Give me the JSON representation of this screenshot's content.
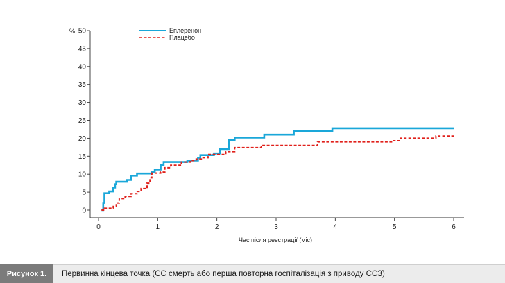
{
  "chart_data": {
    "type": "line",
    "ylabel": "%",
    "xlabel": "Час після реєстрації (міс)",
    "xlim": [
      0,
      6
    ],
    "ylim": [
      0,
      50
    ],
    "x_ticks": [
      0,
      1,
      2,
      3,
      4,
      5,
      6
    ],
    "y_ticks": [
      0,
      5,
      10,
      15,
      20,
      25,
      30,
      35,
      40,
      45,
      50
    ],
    "grid": false,
    "legend_position": "top-center",
    "series": [
      {
        "name": "Еплеренон",
        "color": "#1aa7d9",
        "style": "solid step",
        "points": [
          [
            0.05,
            0
          ],
          [
            0.08,
            2
          ],
          [
            0.1,
            4.7
          ],
          [
            0.18,
            5.2
          ],
          [
            0.25,
            6.3
          ],
          [
            0.28,
            7.2
          ],
          [
            0.3,
            7.9
          ],
          [
            0.48,
            8.4
          ],
          [
            0.55,
            9.6
          ],
          [
            0.65,
            10.2
          ],
          [
            0.9,
            10.6
          ],
          [
            0.95,
            11.3
          ],
          [
            1.05,
            12.5
          ],
          [
            1.1,
            13.4
          ],
          [
            1.35,
            13.4
          ],
          [
            1.5,
            13.8
          ],
          [
            1.68,
            14.6
          ],
          [
            1.72,
            15.3
          ],
          [
            1.95,
            15.8
          ],
          [
            2.05,
            17
          ],
          [
            2.2,
            19.5
          ],
          [
            2.3,
            20.2
          ],
          [
            2.8,
            21
          ],
          [
            3.3,
            22
          ],
          [
            3.95,
            22.8
          ],
          [
            6,
            22.8
          ]
        ]
      },
      {
        "name": "Плацебо",
        "color": "#e0201b",
        "style": "dashed step",
        "points": [
          [
            0.05,
            0
          ],
          [
            0.1,
            0.5
          ],
          [
            0.25,
            1
          ],
          [
            0.3,
            2
          ],
          [
            0.35,
            3.2
          ],
          [
            0.45,
            3.8
          ],
          [
            0.55,
            4.6
          ],
          [
            0.65,
            5.2
          ],
          [
            0.72,
            6
          ],
          [
            0.82,
            7.5
          ],
          [
            0.87,
            9
          ],
          [
            0.9,
            10.3
          ],
          [
            1.05,
            10.6
          ],
          [
            1.12,
            11.8
          ],
          [
            1.22,
            12.5
          ],
          [
            1.4,
            13.4
          ],
          [
            1.55,
            13.8
          ],
          [
            1.65,
            14.2
          ],
          [
            1.75,
            14.6
          ],
          [
            1.85,
            15.5
          ],
          [
            2.15,
            16.3
          ],
          [
            2.3,
            17.4
          ],
          [
            2.75,
            18
          ],
          [
            3.7,
            19
          ],
          [
            4.95,
            19.3
          ],
          [
            5.1,
            20
          ],
          [
            5.7,
            20.6
          ],
          [
            6,
            20.6
          ]
        ]
      }
    ]
  },
  "caption": {
    "label": "Рисунок 1.",
    "text": "Первинна кінцева точка (СС смерть або перша повторна госпіталізація з приводу ССЗ)"
  }
}
